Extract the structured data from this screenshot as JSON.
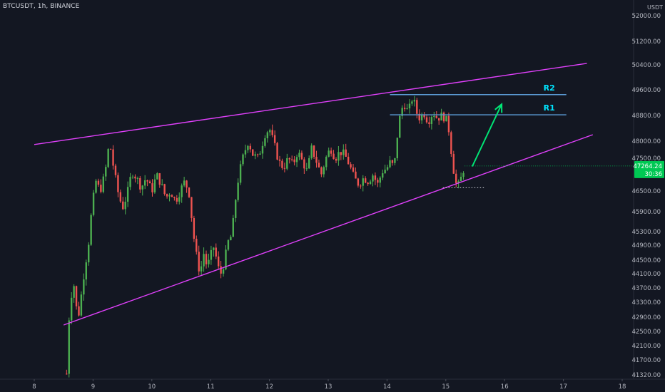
{
  "header": {
    "symbol_text": "BTCUSDT, 1h, BINANCE"
  },
  "price_axis": {
    "currency": "USDT"
  },
  "colors": {
    "background": "#131722",
    "bull": "#26a69a",
    "bull_candle": "#4caf50",
    "bear": "#ef5350",
    "trendline": "#e040fb",
    "resistance": "#5b9bd5",
    "resistance_label": "#00e5ff",
    "arrow": "#00e676",
    "price_tag": "#00c853"
  },
  "chart_data": {
    "type": "candlestick",
    "symbol": "BTCUSDT",
    "interval": "1h",
    "exchange": "BINANCE",
    "y_ticks": [
      52000,
      51200,
      50400,
      49600,
      48800,
      48000,
      47500,
      46500,
      45900,
      45300,
      44900,
      44500,
      44100,
      43700,
      43300,
      42900,
      42500,
      42100,
      41700,
      41320
    ],
    "y_tick_labels": [
      "52000.00",
      "51200.00",
      "50400.00",
      "49600.00",
      "48800.00",
      "48000.00",
      "47500.00",
      "46500.00",
      "45900.00",
      "45300.00",
      "44900.00",
      "44500.00",
      "44100.00",
      "43700.00",
      "43300.00",
      "42900.00",
      "42500.00",
      "42100.00",
      "41700.00",
      "41320.00"
    ],
    "x_ticks": [
      8,
      9,
      10,
      11,
      12,
      13,
      14,
      15,
      16,
      17,
      18
    ],
    "x_tick_labels": [
      "8",
      "9",
      "10",
      "11",
      "12",
      "13",
      "14",
      "15",
      "16",
      "17",
      "18"
    ],
    "x_range": [
      8,
      18
    ],
    "price_path": [
      [
        8.55,
        41350
      ],
      [
        8.58,
        42700
      ],
      [
        8.62,
        43300
      ],
      [
        8.66,
        44000
      ],
      [
        8.7,
        43400
      ],
      [
        8.74,
        42800
      ],
      [
        8.8,
        43500
      ],
      [
        8.86,
        44300
      ],
      [
        8.92,
        44900
      ],
      [
        8.98,
        46000
      ],
      [
        9.05,
        46800
      ],
      [
        9.12,
        46500
      ],
      [
        9.2,
        47000
      ],
      [
        9.28,
        48000
      ],
      [
        9.35,
        47200
      ],
      [
        9.42,
        46500
      ],
      [
        9.5,
        46000
      ],
      [
        9.58,
        46400
      ],
      [
        9.66,
        47100
      ],
      [
        9.74,
        46900
      ],
      [
        9.82,
        46600
      ],
      [
        9.9,
        46900
      ],
      [
        10.0,
        46500
      ],
      [
        10.08,
        47000
      ],
      [
        10.16,
        46700
      ],
      [
        10.24,
        46300
      ],
      [
        10.32,
        46500
      ],
      [
        10.4,
        46200
      ],
      [
        10.48,
        46500
      ],
      [
        10.56,
        46800
      ],
      [
        10.64,
        46400
      ],
      [
        10.7,
        45300
      ],
      [
        10.76,
        44600
      ],
      [
        10.82,
        44100
      ],
      [
        10.88,
        44700
      ],
      [
        10.94,
        44300
      ],
      [
        11.0,
        44600
      ],
      [
        11.06,
        44900
      ],
      [
        11.12,
        44300
      ],
      [
        11.18,
        44100
      ],
      [
        11.24,
        44500
      ],
      [
        11.3,
        45000
      ],
      [
        11.36,
        45200
      ],
      [
        11.42,
        46200
      ],
      [
        11.48,
        47000
      ],
      [
        11.56,
        47600
      ],
      [
        11.64,
        48000
      ],
      [
        11.72,
        47600
      ],
      [
        11.8,
        47500
      ],
      [
        11.86,
        47800
      ],
      [
        11.92,
        48200
      ],
      [
        12.0,
        48400
      ],
      [
        12.08,
        47900
      ],
      [
        12.16,
        47400
      ],
      [
        12.24,
        47200
      ],
      [
        12.32,
        47500
      ],
      [
        12.4,
        47300
      ],
      [
        12.48,
        47700
      ],
      [
        12.56,
        47400
      ],
      [
        12.64,
        47100
      ],
      [
        12.72,
        47800
      ],
      [
        12.8,
        47400
      ],
      [
        12.88,
        47000
      ],
      [
        12.96,
        47500
      ],
      [
        13.04,
        47800
      ],
      [
        13.12,
        47500
      ],
      [
        13.2,
        47700
      ],
      [
        13.28,
        47600
      ],
      [
        13.36,
        47300
      ],
      [
        13.44,
        46900
      ],
      [
        13.52,
        46700
      ],
      [
        13.6,
        46900
      ],
      [
        13.68,
        46800
      ],
      [
        13.76,
        47000
      ],
      [
        13.84,
        46700
      ],
      [
        13.92,
        47100
      ],
      [
        14.0,
        47200
      ],
      [
        14.06,
        47400
      ],
      [
        14.12,
        47200
      ],
      [
        14.2,
        48600
      ],
      [
        14.28,
        49200
      ],
      [
        14.36,
        48900
      ],
      [
        14.44,
        49400
      ],
      [
        14.5,
        48900
      ],
      [
        14.56,
        48700
      ],
      [
        14.62,
        48900
      ],
      [
        14.7,
        48600
      ],
      [
        14.78,
        48900
      ],
      [
        14.86,
        48700
      ],
      [
        14.92,
        48800
      ],
      [
        15.0,
        48700
      ],
      [
        15.04,
        48500
      ],
      [
        15.08,
        47900
      ],
      [
        15.12,
        47300
      ],
      [
        15.16,
        46800
      ],
      [
        15.2,
        46600
      ],
      [
        15.26,
        46900
      ],
      [
        15.32,
        47264
      ]
    ],
    "last_price": 47264.24,
    "last_price_label": "47264.24",
    "countdown_label": "30:36",
    "last_price_prefix": "47",
    "trendlines": [
      {
        "name": "upper-channel",
        "from": [
          8.0,
          47900
        ],
        "to": [
          17.4,
          50450
        ]
      },
      {
        "name": "lower-channel",
        "from": [
          8.5,
          42680
        ],
        "to": [
          17.5,
          48200
        ]
      }
    ],
    "levels": [
      {
        "label": "R2",
        "price": 49450,
        "from": 14.05,
        "to": 17.05
      },
      {
        "label": "R1",
        "price": 48820,
        "from": 14.05,
        "to": 17.05
      }
    ],
    "support_dots": {
      "price": 46600,
      "from": 14.95,
      "to": 15.65
    },
    "arrow": {
      "from": [
        15.45,
        47250
      ],
      "to": [
        15.95,
        49150
      ]
    }
  }
}
